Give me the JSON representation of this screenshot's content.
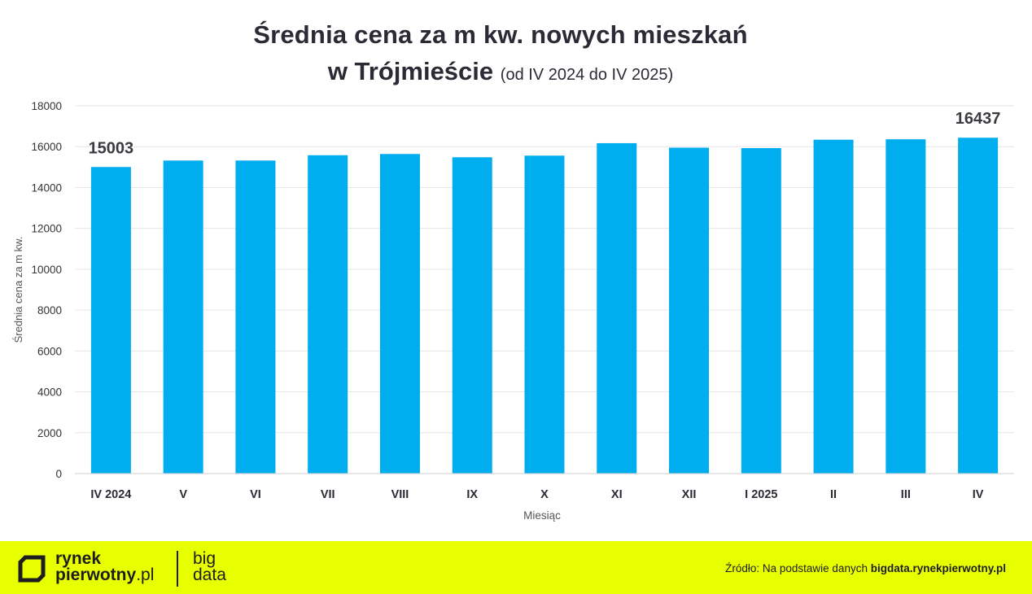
{
  "title": {
    "line1": "Średnia cena za m kw. nowych mieszkań",
    "line2": "w Trójmieście",
    "subtitle": "(od IV 2024 do IV 2025)"
  },
  "chart_data": {
    "type": "bar",
    "categories": [
      "IV 2024",
      "V",
      "VI",
      "VII",
      "VIII",
      "IX",
      "X",
      "XI",
      "XII",
      "I 2025",
      "II",
      "III",
      "IV"
    ],
    "values": [
      15003,
      15320,
      15320,
      15580,
      15640,
      15480,
      15560,
      16170,
      15950,
      15930,
      16340,
      16360,
      16437
    ],
    "data_labels": [
      {
        "index": 0,
        "text": "15003"
      },
      {
        "index": 12,
        "text": "16437"
      }
    ],
    "xlabel": "Miesiąc",
    "ylabel": "Średnia cena za m kw.",
    "ylim": [
      0,
      18000
    ],
    "yticks": [
      0,
      2000,
      4000,
      6000,
      8000,
      10000,
      12000,
      14000,
      16000,
      18000
    ],
    "grid": true,
    "bar_color": "#00aeef"
  },
  "footer": {
    "logo_line1": "rynek",
    "logo_line2": "pierwotny",
    "logo_tld": ".pl",
    "bigdata_line1": "big",
    "bigdata_line2": "data",
    "source_prefix": "Źródło: Na podstawie danych ",
    "source_link": "bigdata.rynekpierwotny.pl",
    "background": "#e8ff00"
  }
}
